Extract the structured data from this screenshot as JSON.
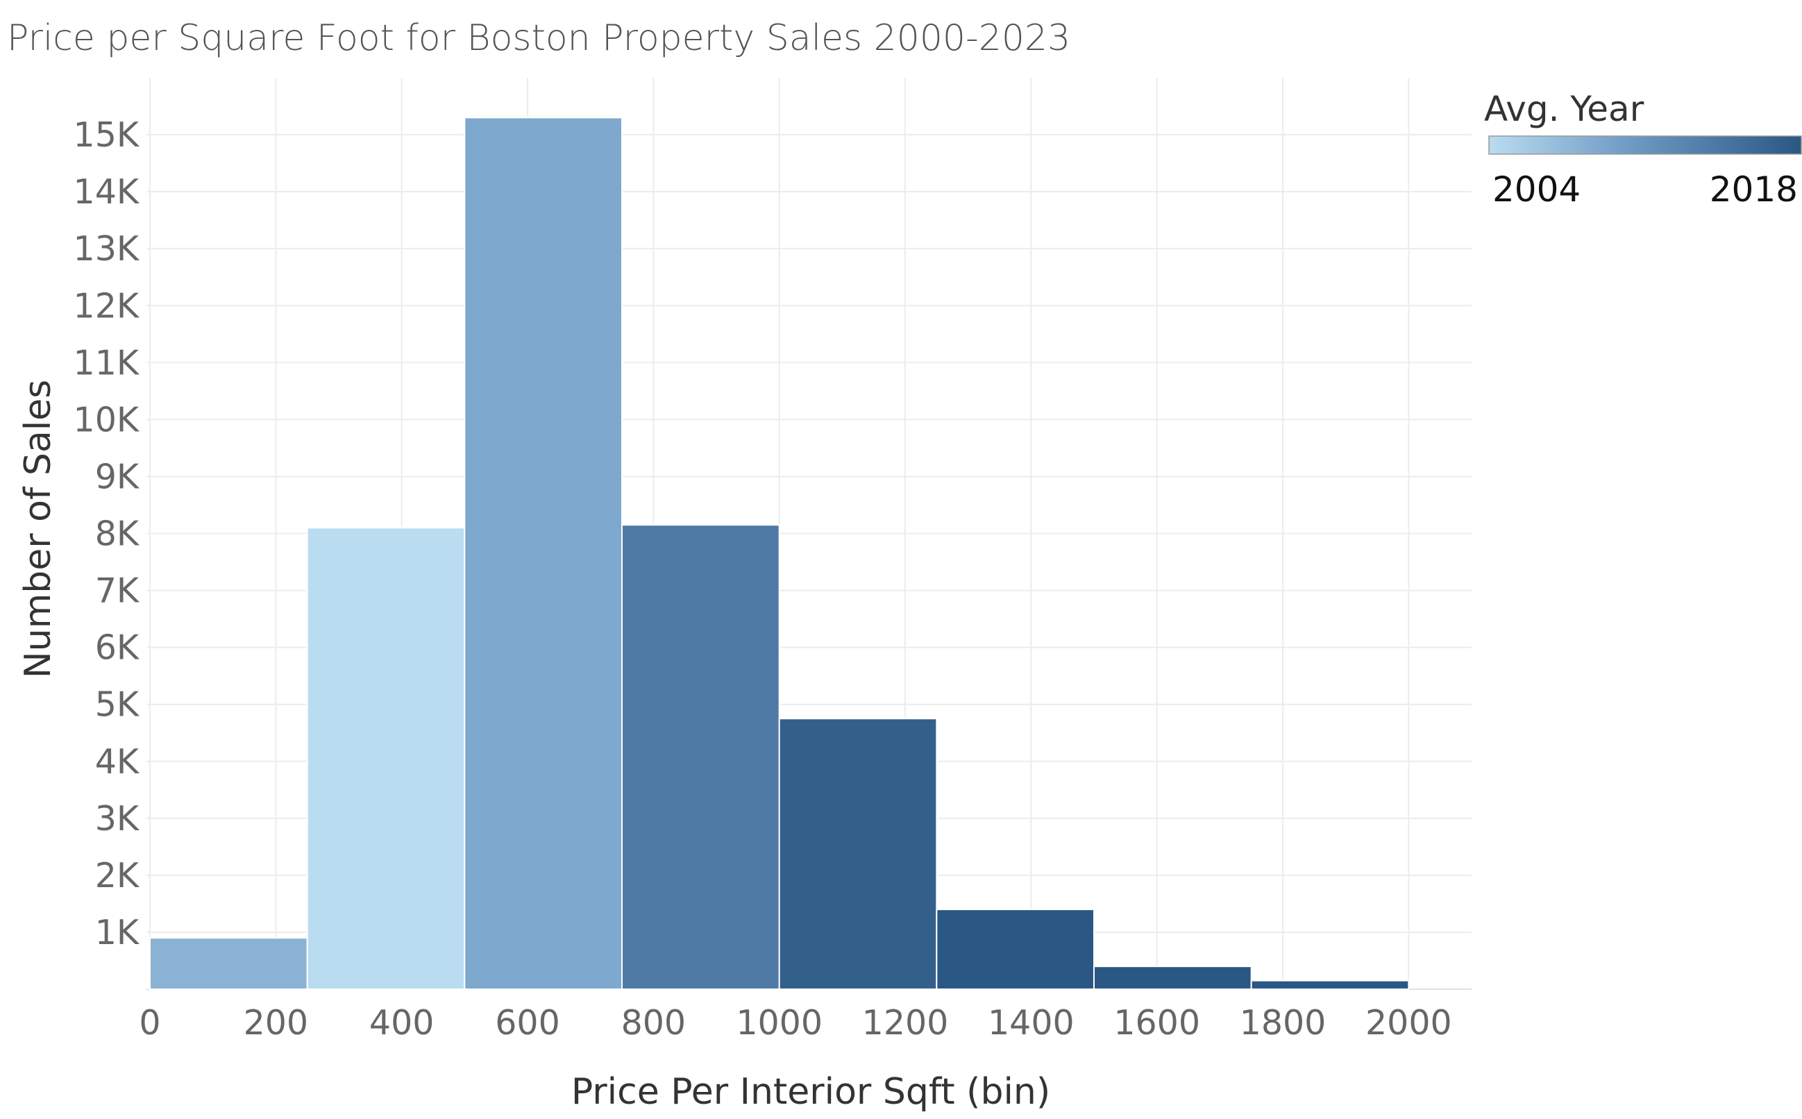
{
  "chart_data": {
    "type": "bar",
    "title": "Price per Square Foot for Boston Property Sales 2000-2023",
    "xlabel": "Price Per Interior Sqft (bin)",
    "ylabel": "Number of Sales",
    "bin_width": 250,
    "bins": [
      {
        "start": 0,
        "end": 250,
        "count": 900,
        "avg_year": 2008
      },
      {
        "start": 250,
        "end": 500,
        "count": 8100,
        "avg_year": 2004
      },
      {
        "start": 500,
        "end": 750,
        "count": 15300,
        "avg_year": 2009
      },
      {
        "start": 750,
        "end": 1000,
        "count": 8150,
        "avg_year": 2014
      },
      {
        "start": 1000,
        "end": 1250,
        "count": 4750,
        "avg_year": 2017
      },
      {
        "start": 1250,
        "end": 1500,
        "count": 1400,
        "avg_year": 2018
      },
      {
        "start": 1500,
        "end": 1750,
        "count": 400,
        "avg_year": 2018
      },
      {
        "start": 1750,
        "end": 2000,
        "count": 150,
        "avg_year": 2018
      }
    ],
    "xlim": [
      0,
      2100
    ],
    "ylim": [
      0,
      16000
    ],
    "x_ticks": [
      0,
      200,
      400,
      600,
      800,
      1000,
      1200,
      1400,
      1600,
      1800,
      2000
    ],
    "x_tick_labels": [
      "0",
      "200",
      "400",
      "600",
      "800",
      "1000",
      "1200",
      "1400",
      "1600",
      "1800",
      "2000"
    ],
    "y_ticks": [
      1000,
      2000,
      3000,
      4000,
      5000,
      6000,
      7000,
      8000,
      9000,
      10000,
      11000,
      12000,
      13000,
      14000,
      15000
    ],
    "y_tick_labels": [
      "1K",
      "2K",
      "3K",
      "4K",
      "5K",
      "6K",
      "7K",
      "8K",
      "9K",
      "10K",
      "11K",
      "12K",
      "13K",
      "14K",
      "15K"
    ],
    "grid": true,
    "legend": {
      "title": "Avg. Year",
      "min_label": "2004",
      "max_label": "2018",
      "min_value": 2004,
      "max_value": 2018,
      "color_low": "#b9dcf0",
      "color_high": "#2a5783",
      "placement": "top-right"
    }
  }
}
